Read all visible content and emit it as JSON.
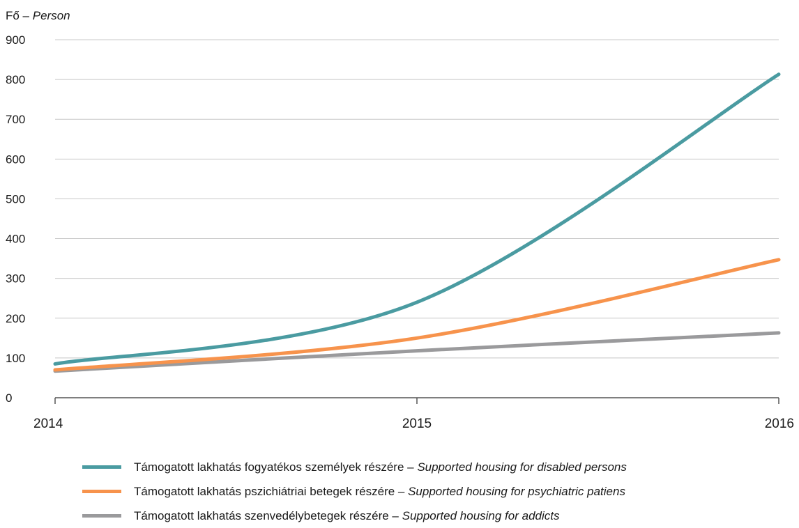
{
  "chart_data": {
    "type": "line",
    "unit_label": {
      "main": "Fő – ",
      "italic": "Person"
    },
    "x": [
      "2014",
      "2015",
      "2016"
    ],
    "ylim": [
      0,
      900
    ],
    "yticks": [
      0,
      100,
      200,
      300,
      400,
      500,
      600,
      700,
      800,
      900
    ],
    "grid": true,
    "series": [
      {
        "name": "Támogatott lakhatás fogyatékos személyek részére – ",
        "name_en": "Supported housing for disabled persons",
        "values": [
          85,
          240,
          813
        ],
        "color": "#4a9ba1"
      },
      {
        "name": "Támogatott lakhatás pszichiátriai betegek részére – ",
        "name_en": "Supported housing for psychiatric patiens",
        "values": [
          70,
          150,
          347
        ],
        "color": "#f7934c"
      },
      {
        "name": "Támogatott lakhatás szenvedélybetegek részére – ",
        "name_en": "Supported housing for addicts",
        "values": [
          67,
          118,
          163
        ],
        "color": "#9a9a9c"
      }
    ]
  }
}
